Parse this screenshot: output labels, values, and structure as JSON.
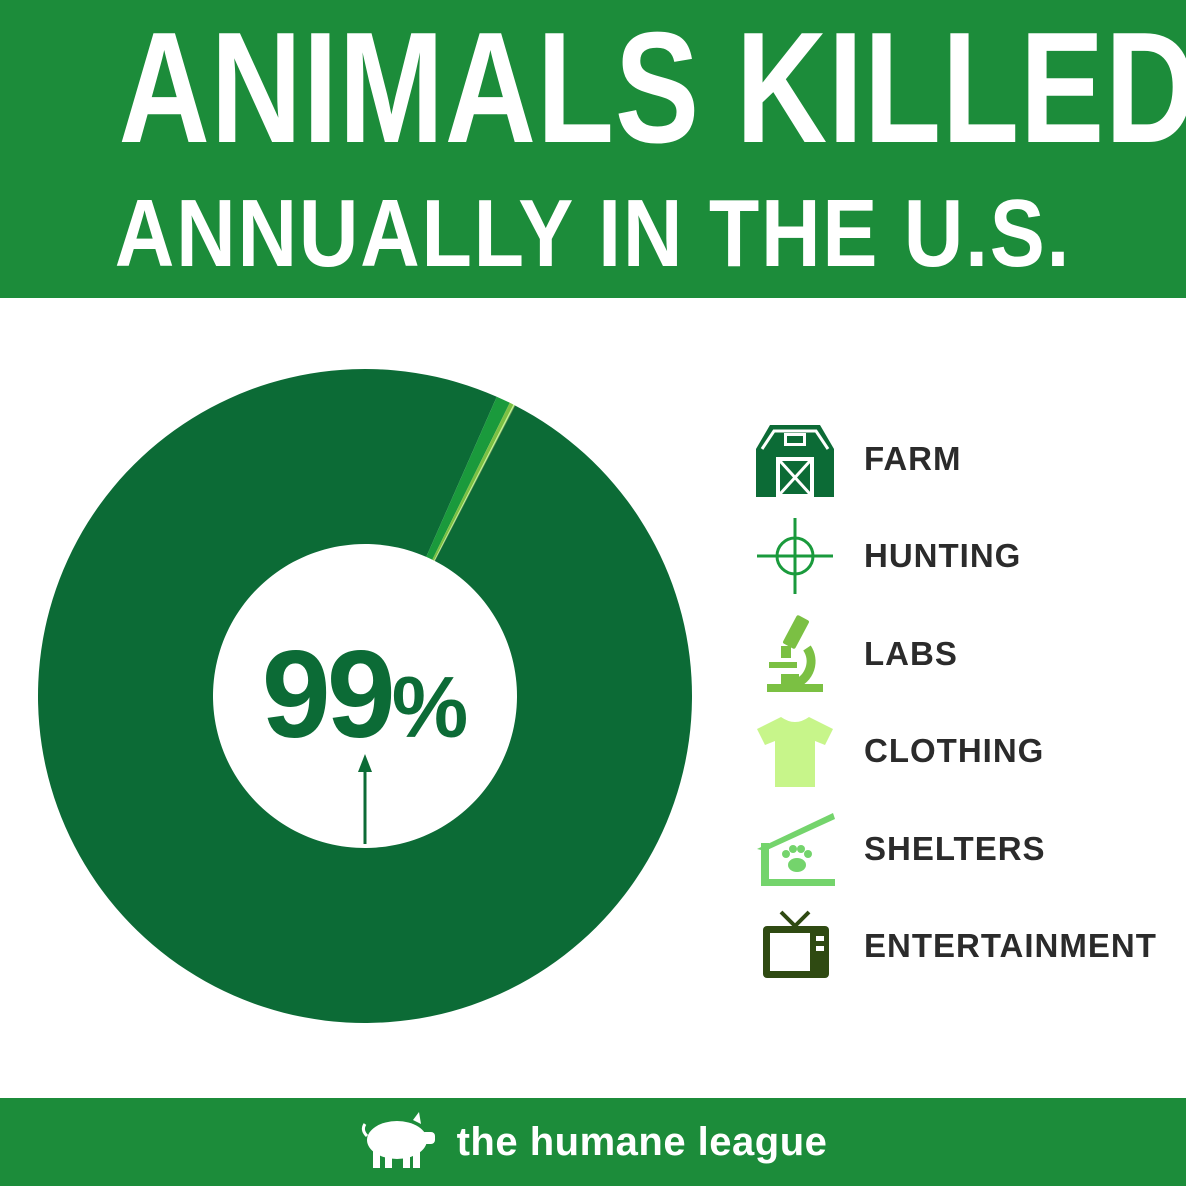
{
  "header": {
    "title_line1": "ANIMALS KILLED",
    "title_line2": "ANNUALLY IN THE U.S."
  },
  "chart_data": {
    "type": "pie",
    "center_label": "99%",
    "categories": [
      "FARM",
      "HUNTING",
      "LABS",
      "CLOTHING",
      "SHELTERS",
      "ENTERTAINMENT"
    ],
    "values": [
      99.0,
      0.7,
      0.2,
      0.05,
      0.03,
      0.02
    ],
    "colors": [
      "#0c6b36",
      "#1a9a3c",
      "#7bc043",
      "#c7f58a",
      "#74d46c",
      "#2f4a12"
    ]
  },
  "legend": {
    "items": [
      {
        "label": "FARM",
        "icon": "barn-icon",
        "color": "#0c6b36"
      },
      {
        "label": "HUNTING",
        "icon": "crosshair-icon",
        "color": "#1a9a3c"
      },
      {
        "label": "LABS",
        "icon": "microscope-icon",
        "color": "#7bc043"
      },
      {
        "label": "CLOTHING",
        "icon": "tshirt-icon",
        "color": "#c7f58a"
      },
      {
        "label": "SHELTERS",
        "icon": "shelter-paw-icon",
        "color": "#74d46c"
      },
      {
        "label": "ENTERTAINMENT",
        "icon": "tv-icon",
        "color": "#2f4a12"
      }
    ]
  },
  "footer": {
    "brand": "the humane league",
    "logo_icon": "pig-icon"
  }
}
